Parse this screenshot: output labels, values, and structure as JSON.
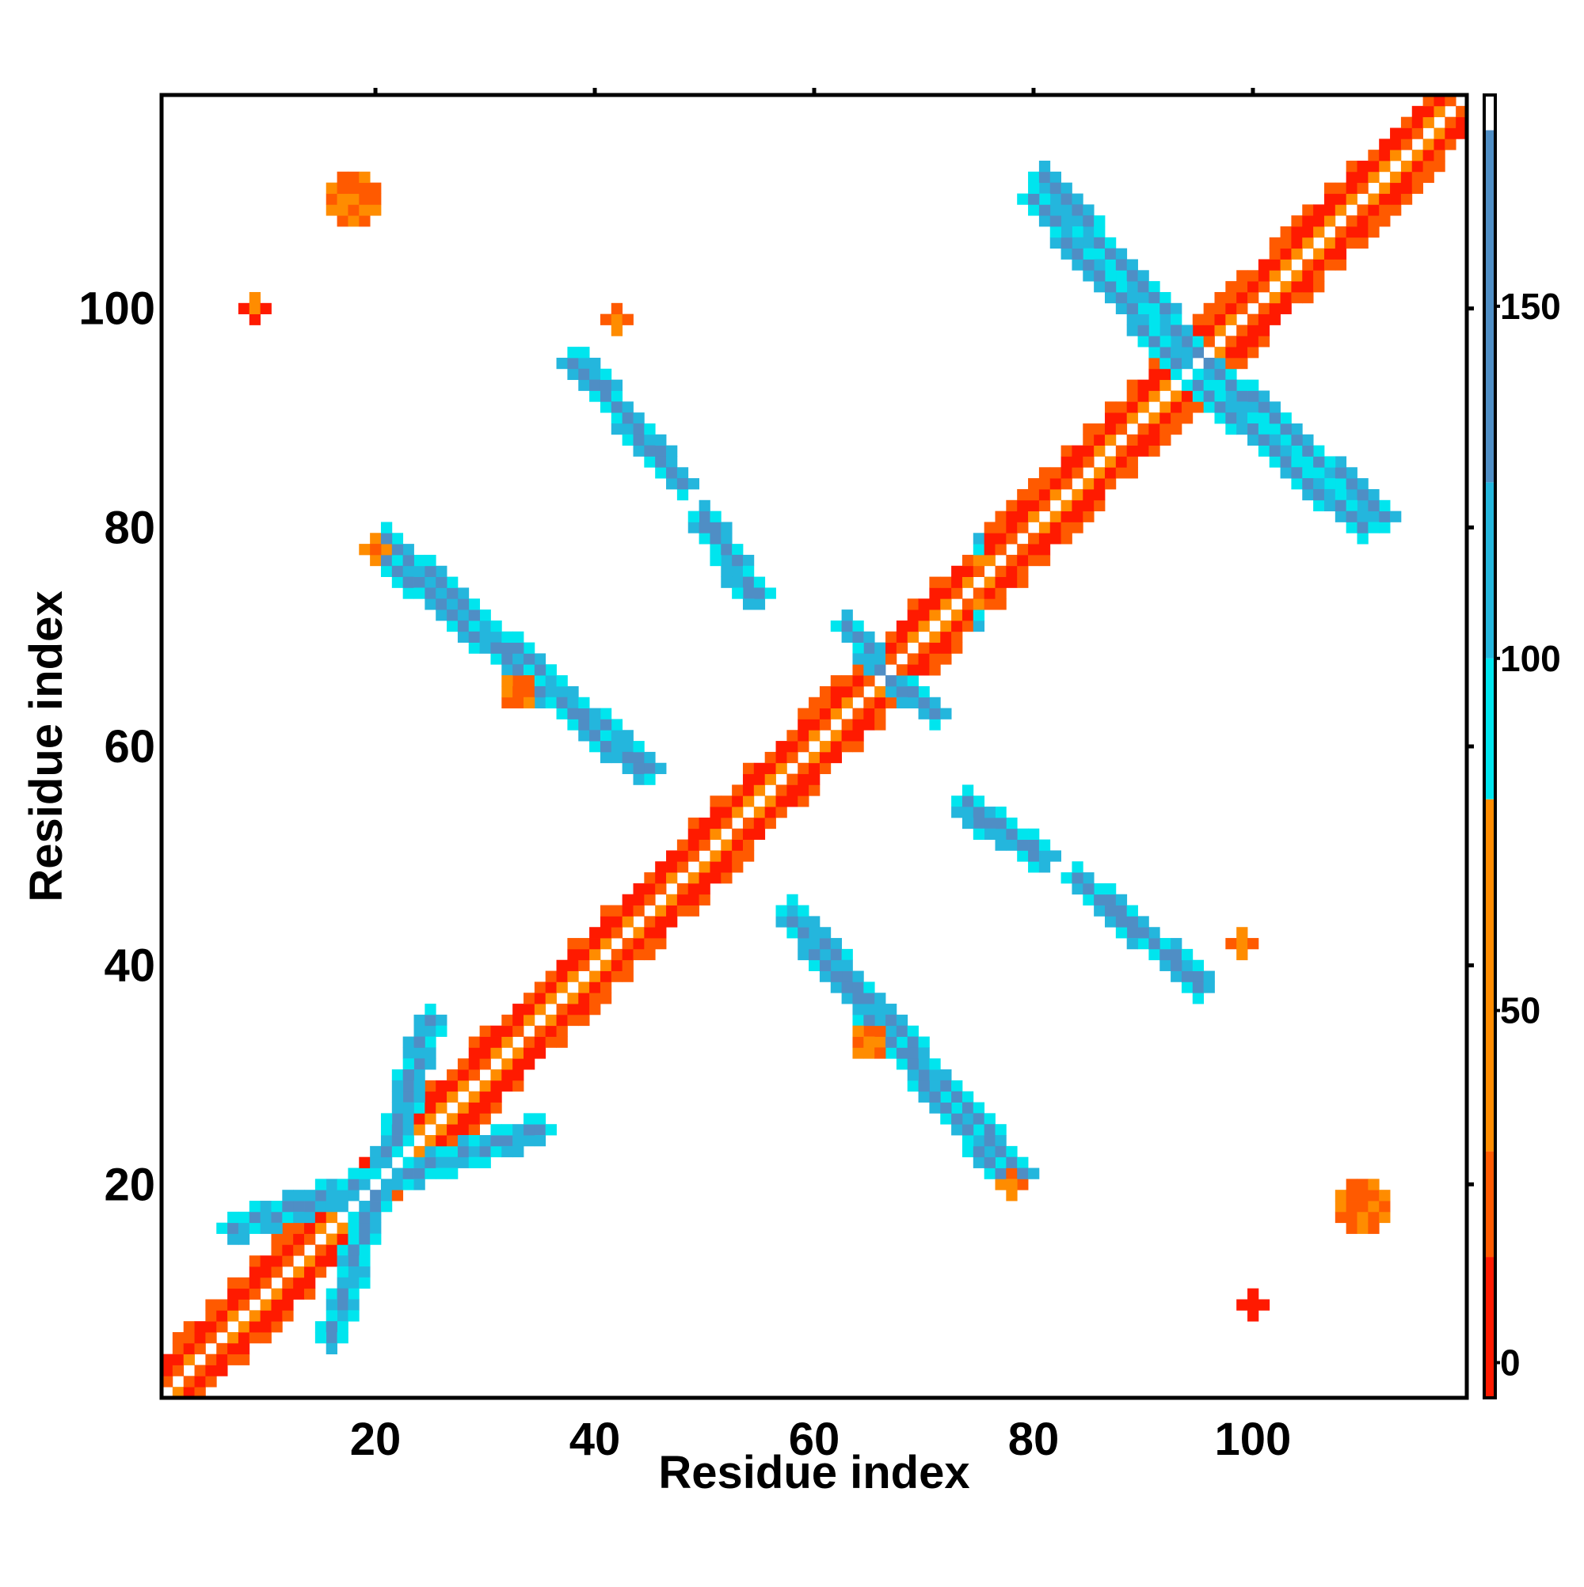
{
  "chart_data": {
    "type": "heatmap",
    "title": "",
    "xlabel": "Residue index",
    "ylabel": "Residue index",
    "xlim": [
      1,
      119
    ],
    "ylim": [
      1,
      119
    ],
    "x_ticks": [
      {
        "value": 20,
        "label": "20"
      },
      {
        "value": 40,
        "label": "40"
      },
      {
        "value": 60,
        "label": "60"
      },
      {
        "value": 80,
        "label": "80"
      },
      {
        "value": 100,
        "label": "100"
      }
    ],
    "y_ticks": [
      {
        "value": 20,
        "label": "20"
      },
      {
        "value": 40,
        "label": "40"
      },
      {
        "value": 60,
        "label": "60"
      },
      {
        "value": 80,
        "label": "80"
      },
      {
        "value": 100,
        "label": "100"
      }
    ],
    "colorbar": {
      "range": [
        -5,
        180
      ],
      "ticks": [
        {
          "value": 0,
          "label": "0"
        },
        {
          "value": 50,
          "label": "50"
        },
        {
          "value": 100,
          "label": "100"
        },
        {
          "value": 150,
          "label": "150"
        }
      ],
      "bands": [
        {
          "from": -5,
          "to": 15,
          "color": "#ff1a00"
        },
        {
          "from": 15,
          "to": 30,
          "color": "#ff5a00"
        },
        {
          "from": 30,
          "to": 80,
          "color": "#ff8c00"
        },
        {
          "from": 80,
          "to": 100,
          "color": "#00e5ee"
        },
        {
          "from": 100,
          "to": 125,
          "color": "#24b6dd"
        },
        {
          "from": 125,
          "to": 175,
          "color": "#4f8ec5"
        },
        {
          "from": 175,
          "to": 180,
          "color": "#ffffff"
        }
      ]
    },
    "grid": false,
    "regions": [
      {
        "kind": "diagonal",
        "from": 1,
        "to": 119
      },
      {
        "kind": "helix",
        "from": [
          1,
          5
        ],
        "to": [
          14,
          17
        ]
      },
      {
        "kind": "helix",
        "from": [
          16,
          19
        ],
        "to": [
          24,
          27
        ]
      },
      {
        "kind": "helix",
        "from": [
          26,
          29
        ],
        "to": [
          39,
          43
        ]
      },
      {
        "kind": "helix",
        "from": [
          44,
          47
        ],
        "to": [
          54,
          56
        ]
      },
      {
        "kind": "helix",
        "from": [
          55,
          58
        ],
        "to": [
          70,
          74
        ]
      },
      {
        "kind": "helix",
        "from": [
          76,
          80
        ],
        "to": [
          92,
          95
        ]
      },
      {
        "kind": "helix",
        "from": [
          96,
          100
        ],
        "to": [
          116,
          119
        ]
      },
      {
        "kind": "strand",
        "a": [
          7,
          16
        ],
        "b": [
          35,
          25
        ],
        "value": 140
      },
      {
        "kind": "strand",
        "a": [
          25,
          35
        ],
        "b": [
          16,
          6
        ],
        "value": 140
      },
      {
        "kind": "strand",
        "a": [
          21,
          77
        ],
        "b": [
          44,
          58
        ],
        "value": 140
      },
      {
        "kind": "strand",
        "a": [
          77,
          21
        ],
        "b": [
          58,
          44
        ],
        "value": 140
      },
      {
        "kind": "strand",
        "a": [
          38,
          95
        ],
        "b": [
          47,
          85
        ],
        "value": 140
      },
      {
        "kind": "strand",
        "a": [
          95,
          38
        ],
        "b": [
          85,
          47
        ],
        "value": 140
      },
      {
        "kind": "strand",
        "a": [
          50,
          80
        ],
        "b": [
          55,
          74
        ],
        "value": 140
      },
      {
        "kind": "strand",
        "a": [
          80,
          50
        ],
        "b": [
          74,
          55
        ],
        "value": 140
      },
      {
        "kind": "strand",
        "a": [
          58,
          45
        ],
        "b": [
          79,
          21
        ],
        "value": 140
      },
      {
        "kind": "strand",
        "a": [
          45,
          58
        ],
        "b": [
          21,
          79
        ],
        "value": 140
      },
      {
        "kind": "strand",
        "a": [
          84,
          48
        ],
        "b": [
          95,
          39
        ],
        "value": 140
      },
      {
        "kind": "strand",
        "a": [
          48,
          84
        ],
        "b": [
          39,
          95
        ],
        "value": 140
      },
      {
        "kind": "strand",
        "a": [
          81,
          112
        ],
        "b": [
          95,
          96
        ],
        "value": 140
      },
      {
        "kind": "strand",
        "a": [
          112,
          81
        ],
        "b": [
          96,
          95
        ],
        "value": 140
      },
      {
        "kind": "strand",
        "a": [
          95,
          93
        ],
        "b": [
          110,
          80
        ],
        "value": 140
      },
      {
        "kind": "strand",
        "a": [
          93,
          95
        ],
        "b": [
          80,
          110
        ],
        "value": 140
      },
      {
        "kind": "strand",
        "a": [
          74,
          54
        ],
        "b": [
          81,
          50
        ],
        "value": 135
      },
      {
        "kind": "strand",
        "a": [
          54,
          74
        ],
        "b": [
          50,
          81
        ],
        "value": 135
      },
      {
        "kind": "strand",
        "a": [
          63,
          71
        ],
        "b": [
          67,
          66
        ],
        "value": 130
      },
      {
        "kind": "strand",
        "a": [
          71,
          63
        ],
        "b": [
          66,
          67
        ],
        "value": 130
      },
      {
        "kind": "patch",
        "cx": 18,
        "cy": 110,
        "r": 2.5,
        "value": 20
      },
      {
        "kind": "patch",
        "cx": 110,
        "cy": 18,
        "r": 2.5,
        "value": 20
      },
      {
        "kind": "patch",
        "cx": 9,
        "cy": 100,
        "r": 1.4,
        "value": 8
      },
      {
        "kind": "patch",
        "cx": 100,
        "cy": 9,
        "r": 1.4,
        "value": 8
      },
      {
        "kind": "patch",
        "cx": 33,
        "cy": 65,
        "r": 1.6,
        "value": 55
      },
      {
        "kind": "patch",
        "cx": 65,
        "cy": 33,
        "r": 1.6,
        "value": 55
      },
      {
        "kind": "patch",
        "cx": 20,
        "cy": 78,
        "r": 1,
        "value": 55
      },
      {
        "kind": "patch",
        "cx": 78,
        "cy": 20,
        "r": 1,
        "value": 55
      },
      {
        "kind": "patch",
        "cx": 42,
        "cy": 99,
        "r": 1.4,
        "value": 55
      },
      {
        "kind": "patch",
        "cx": 99,
        "cy": 42,
        "r": 1.4,
        "value": 55
      }
    ]
  }
}
